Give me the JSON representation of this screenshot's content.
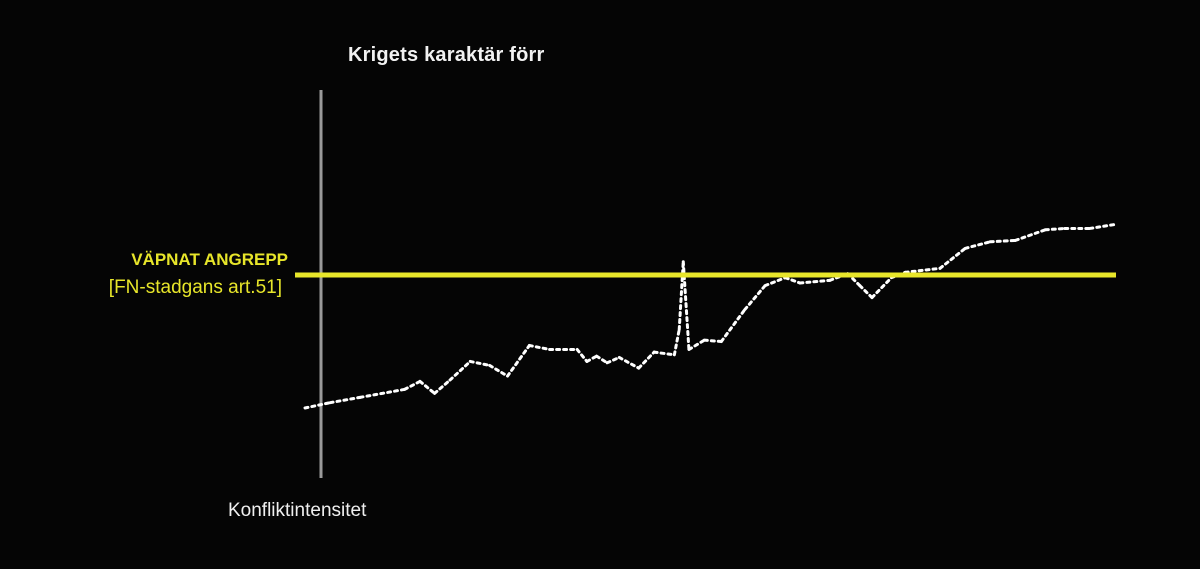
{
  "chart_data": {
    "type": "line",
    "title": "Krigets karaktär förr",
    "xlabel": "",
    "ylabel": "Konfliktintensitet",
    "grid": false,
    "threshold": {
      "label": "VÄPNAT ANGREPP",
      "sublabel": "[FN-stadgans art.51]",
      "value": 100,
      "color": "#e8e62a"
    },
    "series": [
      {
        "style": "dotted",
        "color": "#ffffff",
        "x": [
          0,
          3.1,
          6.8,
          12.3,
          14.2,
          16,
          17.9,
          20.4,
          22.8,
          25,
          27.7,
          30.2,
          33.6,
          34.8,
          36,
          37.3,
          38.8,
          41.2,
          43.1,
          45.6,
          46.2,
          46.7,
          47.4,
          49.3,
          51.4,
          54.3,
          56.8,
          59.3,
          61.1,
          64.8,
          67,
          68.5,
          70,
          72.4,
          74.1,
          78.4,
          81.5,
          84.6,
          87.7,
          91.4,
          93.8,
          96.9,
          100
        ],
        "y": [
          0,
          4,
          8,
          14,
          20,
          11,
          21,
          35,
          32,
          24,
          47,
          44,
          44,
          35,
          39,
          34,
          38,
          30,
          42,
          40,
          59,
          110,
          44,
          51,
          50,
          74,
          92,
          98,
          94,
          96,
          101,
          92,
          83,
          98,
          102,
          105,
          120,
          125,
          126,
          134,
          135,
          135,
          138
        ]
      }
    ],
    "axis_color": "#9a9a9a"
  }
}
